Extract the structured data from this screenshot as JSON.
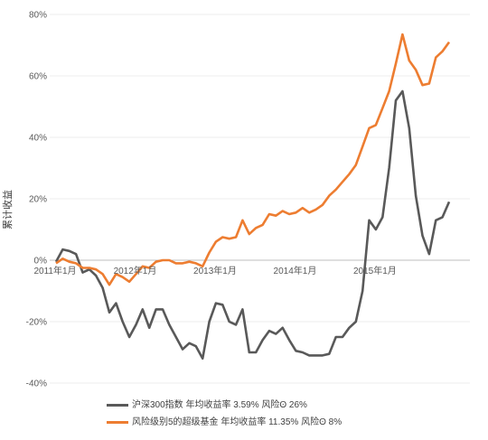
{
  "chart_data": {
    "type": "line",
    "ylabel": "累计收益",
    "ylim": [
      -40,
      80
    ],
    "yticks": [
      -40,
      -20,
      0,
      20,
      40,
      60,
      80
    ],
    "ytick_labels": [
      "-40%",
      "-20%",
      "0%",
      "20%",
      "40%",
      "60%",
      "80%"
    ],
    "x_start": "2011-01",
    "x_end": "2015-12",
    "xtick_labels": [
      "2011年1月",
      "2012年1月",
      "2013年1月",
      "2014年1月",
      "2015年1月"
    ],
    "legend_position": "bottom",
    "series": [
      {
        "name": "沪深300指数 年均收益率 3.59% 风险ʘ 26%",
        "color": "#595959",
        "values": [
          -0.5,
          3.5,
          3,
          2,
          -4,
          -3,
          -5,
          -9,
          -17,
          -14,
          -20,
          -25,
          -21,
          -16,
          -22,
          -16,
          -16,
          -21,
          -25,
          -29,
          -27,
          -28,
          -32,
          -20,
          -14,
          -14.5,
          -20,
          -21,
          -16,
          -30,
          -30,
          -26,
          -23,
          -24,
          -22,
          -26,
          -29.5,
          -30,
          -31,
          -31,
          -31,
          -30.5,
          -25,
          -25,
          -22,
          -20,
          -10,
          13,
          10,
          14,
          30,
          52,
          55,
          43,
          21,
          8,
          2,
          13,
          14,
          19
        ]
      },
      {
        "name": "风险级别5的超级基金 年均收益率 11.35% 风险ʘ 8%",
        "color": "#ed7d31",
        "values": [
          -1,
          0.5,
          -0.5,
          -1,
          -2.5,
          -2.5,
          -3,
          -4.5,
          -8,
          -4.5,
          -5.5,
          -7,
          -4.5,
          -2,
          -2.5,
          -0.5,
          0,
          0,
          -1,
          -1,
          -0.5,
          -1,
          -2,
          2.5,
          6,
          7.5,
          7,
          7.5,
          13,
          8.5,
          10.5,
          11.5,
          15,
          14.5,
          16,
          15,
          15.5,
          17,
          15.5,
          16.5,
          18,
          21,
          23,
          25.5,
          28,
          31,
          37,
          43,
          44,
          49.5,
          55,
          64,
          73.5,
          65,
          62,
          57,
          57.5,
          66,
          68,
          71
        ]
      }
    ]
  }
}
